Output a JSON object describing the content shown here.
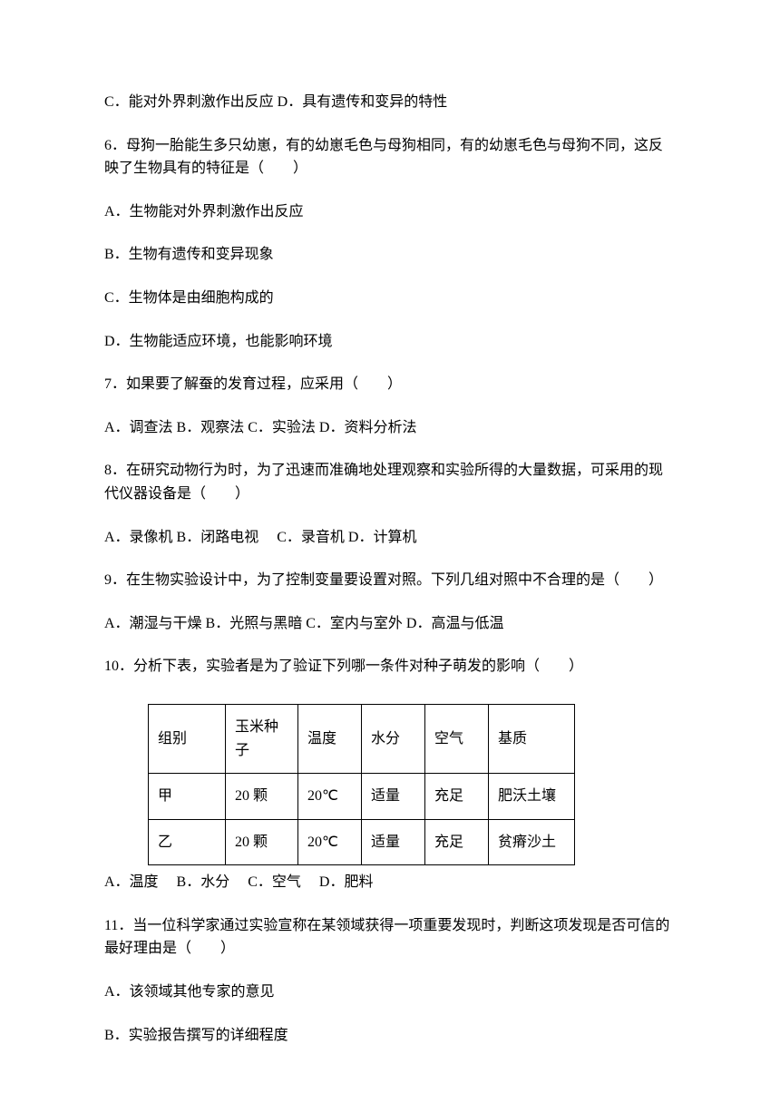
{
  "line_prev_options": "C．能对外界刺激作出反应  D．具有遗传和变异的特性",
  "q6": {
    "stem": "6．母狗一胎能生多只幼崽，有的幼崽毛色与母狗相同，有的幼崽毛色与母狗不同，这反映了生物具有的特征是（　　）",
    "optA": "A．生物能对外界刺激作出反应",
    "optB": "B．生物有遗传和变异现象",
    "optC": "C．生物体是由细胞构成的",
    "optD": "D．生物能适应环境，也能影响环境"
  },
  "q7": {
    "stem": "7．如果要了解蚕的发育过程，应采用（　　）",
    "options": "A．调查法  B．观察法  C．实验法  D．资料分析法"
  },
  "q8": {
    "stem": "8．在研究动物行为时，为了迅速而准确地处理观察和实验所得的大量数据，可采用的现代仪器设备是（　　）",
    "options": "A．录像机  B．闭路电视　 C．录音机  D．计算机"
  },
  "q9": {
    "stem": "9．在生物实验设计中，为了控制变量要设置对照。下列几组对照中不合理的是（　　）",
    "options": "A．潮湿与干燥  B．光照与黑暗  C．室内与室外  D．高温与低温"
  },
  "q10": {
    "stem": "10．分析下表，实验者是为了验证下列哪一条件对种子萌发的影响（　　）",
    "table": {
      "headers": [
        "组别",
        "玉米种子",
        "温度",
        "水分",
        "空气",
        "基质"
      ],
      "rows": [
        [
          "甲",
          "20 颗",
          "20℃",
          "适量",
          "充足",
          "肥沃土壤"
        ],
        [
          "乙",
          "20 颗",
          "20℃",
          "适量",
          "充足",
          "贫瘠沙土"
        ]
      ]
    },
    "options": "A．温度　  B．水分　  C．空气　  D．肥料"
  },
  "q11": {
    "stem": "11．当一位科学家通过实验宣称在某领域获得一项重要发现时，判断这项发现是否可信的最好理由是（　　）",
    "optA": "A．该领域其他专家的意见",
    "optB": "B．实验报告撰写的详细程度"
  },
  "colors": {
    "text": "#000000",
    "background": "#ffffff",
    "border": "#000000"
  },
  "fonts": {
    "family": "SimSun",
    "size_pt": 12
  }
}
